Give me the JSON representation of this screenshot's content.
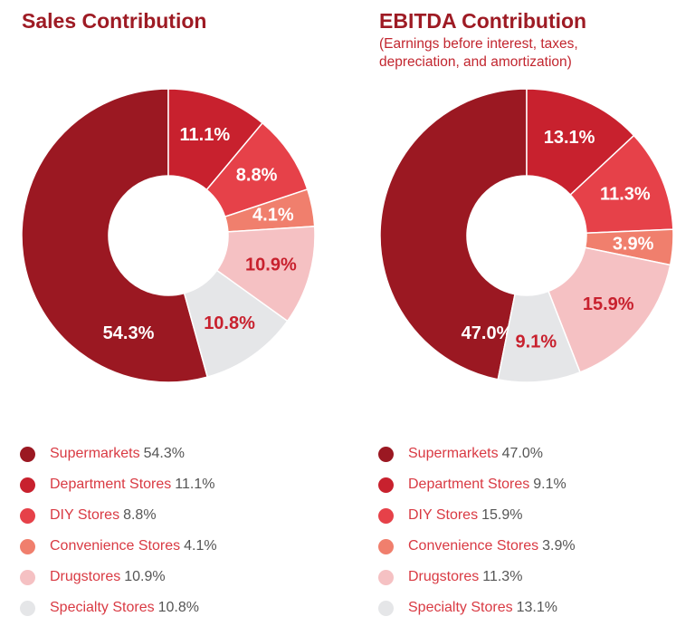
{
  "colors": {
    "supermarkets": "#9b1822",
    "department_stores": "#c8212e",
    "diy_stores": "#e64149",
    "convenience_stores": "#f07f6d",
    "drugstores": "#f5c1c3",
    "specialty_stores": "#e5e6e8"
  },
  "chart_data": [
    {
      "type": "pie",
      "title": "Sales Contribution",
      "subtitle": "",
      "slices": [
        {
          "label": "Supermarkets",
          "value": 54.3,
          "label_text": "54.3%",
          "color": "#9b1822",
          "label_color": "#ffffff"
        },
        {
          "label": "Department Stores",
          "value": 11.1,
          "label_text": "11.1%",
          "color": "#c8212e",
          "label_color": "#ffffff"
        },
        {
          "label": "DIY Stores",
          "value": 8.8,
          "label_text": "8.8%",
          "color": "#e64149",
          "label_color": "#ffffff"
        },
        {
          "label": "Convenience Stores",
          "value": 4.1,
          "label_text": "4.1%",
          "color": "#f07f6d",
          "label_color": "#ffffff"
        },
        {
          "label": "Drugstores",
          "value": 10.9,
          "label_text": "10.9%",
          "color": "#f5c1c3",
          "label_color": "#c8212e"
        },
        {
          "label": "Specialty Stores",
          "value": 10.8,
          "label_text": "10.8%",
          "color": "#e5e6e8",
          "label_color": "#c8212e"
        }
      ],
      "legend": [
        {
          "label": "Supermarkets",
          "value_text": "54.3%",
          "color": "#9b1822"
        },
        {
          "label": "Department Stores",
          "value_text": "11.1%",
          "color": "#c8212e"
        },
        {
          "label": "DIY Stores",
          "value_text": "8.8%",
          "color": "#e64149"
        },
        {
          "label": "Convenience Stores",
          "value_text": "4.1%",
          "color": "#f07f6d"
        },
        {
          "label": "Drugstores",
          "value_text": "10.9%",
          "color": "#f5c1c3"
        },
        {
          "label": "Specialty Stores",
          "value_text": "10.8%",
          "color": "#e5e6e8"
        }
      ],
      "legend_placement": "bottom"
    },
    {
      "type": "pie",
      "title": "EBITDA Contribution",
      "subtitle": "(Earnings before interest, taxes, depreciation, and amortization)",
      "slices": [
        {
          "label": "Supermarkets",
          "value": 47.0,
          "label_text": "47.0%",
          "color": "#9b1822",
          "label_color": "#ffffff"
        },
        {
          "label": "Specialty Stores",
          "value": 13.1,
          "label_text": "13.1%",
          "color": "#c8212e",
          "label_color": "#ffffff"
        },
        {
          "label": "Drugstores",
          "value": 11.3,
          "label_text": "11.3%",
          "color": "#e64149",
          "label_color": "#ffffff"
        },
        {
          "label": "Convenience Stores",
          "value": 3.9,
          "label_text": "3.9%",
          "color": "#f07f6d",
          "label_color": "#ffffff"
        },
        {
          "label": "DIY Stores",
          "value": 15.9,
          "label_text": "15.9%",
          "color": "#f5c1c3",
          "label_color": "#c8212e"
        },
        {
          "label": "Department Stores",
          "value": 9.1,
          "label_text": "9.1%",
          "color": "#e5e6e8",
          "label_color": "#c8212e"
        }
      ],
      "legend": [
        {
          "label": "Supermarkets",
          "value_text": "47.0%",
          "color": "#9b1822"
        },
        {
          "label": "Department Stores",
          "value_text": "9.1%",
          "color": "#c8212e"
        },
        {
          "label": "DIY Stores",
          "value_text": "15.9%",
          "color": "#e64149"
        },
        {
          "label": "Convenience Stores",
          "value_text": "3.9%",
          "color": "#f07f6d"
        },
        {
          "label": "Drugstores",
          "value_text": "11.3%",
          "color": "#f5c1c3"
        },
        {
          "label": "Specialty Stores",
          "value_text": "13.1%",
          "color": "#e5e6e8"
        }
      ],
      "legend_placement": "bottom"
    }
  ]
}
